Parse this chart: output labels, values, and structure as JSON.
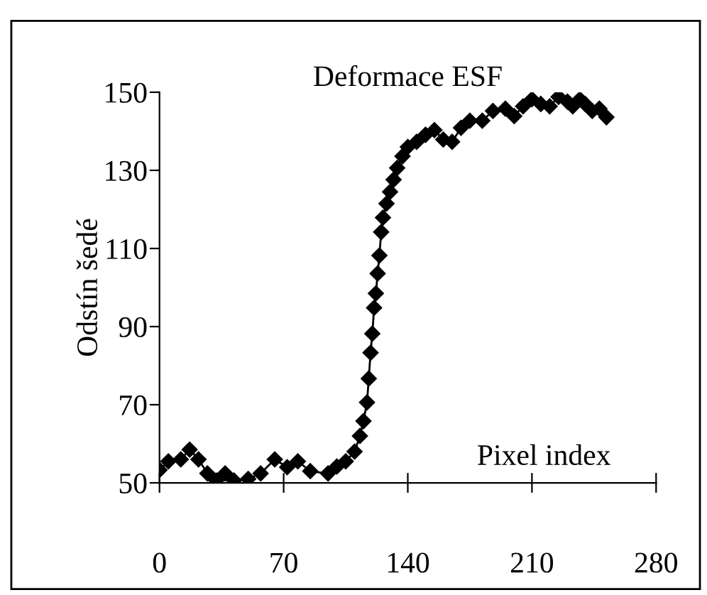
{
  "chart_data": {
    "type": "line",
    "title": "Deformace ESF",
    "xlabel": "Pixel index",
    "ylabel": "Odstín šedé",
    "x": [
      0,
      5,
      12,
      17,
      22,
      27,
      32,
      37,
      42,
      50,
      57,
      65,
      72,
      78,
      85,
      95,
      100,
      105,
      110,
      113,
      115,
      117,
      118,
      119,
      120,
      121,
      122,
      123,
      124,
      125,
      126,
      128,
      130,
      132,
      134,
      137,
      140,
      145,
      150,
      155,
      160,
      165,
      170,
      175,
      182,
      188,
      195,
      200,
      205,
      210,
      215,
      220,
      225,
      230,
      233,
      237,
      240,
      244,
      248,
      252
    ],
    "series": [
      {
        "color": "#000000",
        "values": [
          53.3,
          55.5,
          56,
          58.5,
          56,
          52.4,
          50.6,
          52.4,
          50.6,
          51,
          52.4,
          56,
          54,
          55.5,
          53,
          52.4,
          54.2,
          55.5,
          58,
          62,
          65.8,
          70.6,
          76.7,
          83.3,
          88.2,
          94.8,
          98.5,
          103.6,
          108.2,
          114.2,
          117.9,
          121.5,
          124.5,
          127.6,
          130.6,
          133.6,
          136,
          137.3,
          139.1,
          140.3,
          137.9,
          137.3,
          140.9,
          142.7,
          142.7,
          145.2,
          145.8,
          143.9,
          146.4,
          148.2,
          147,
          146.4,
          148.8,
          147.6,
          146.4,
          148.2,
          147,
          145.2,
          145.8,
          143.6
        ]
      }
    ],
    "xlim": [
      0,
      280
    ],
    "xticks": [
      0,
      70,
      140,
      210,
      280
    ],
    "ylim": [
      50,
      150
    ],
    "yticks": [
      50,
      70,
      90,
      110,
      130,
      150
    ],
    "marker": "diamond",
    "line_style": "solid",
    "grid": false,
    "legend": false
  }
}
